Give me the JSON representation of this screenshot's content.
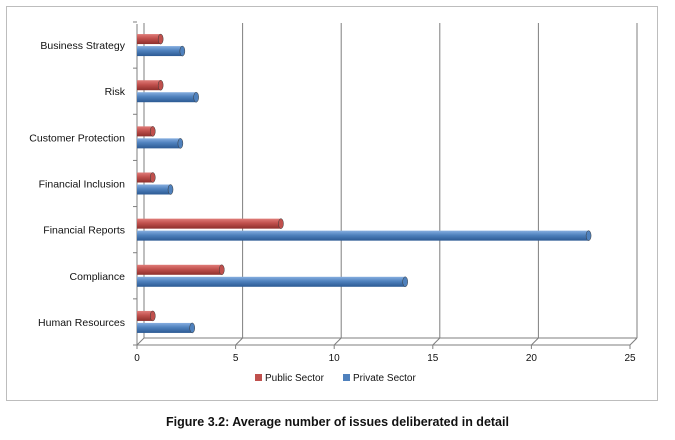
{
  "caption": "Figure 3.2: Average number of issues deliberated in detail",
  "chart_data": {
    "type": "bar",
    "orientation": "horizontal",
    "categories": [
      "Business Strategy",
      "Risk",
      "Customer Protection",
      "Financial Inclusion",
      "Financial Reports",
      "Compliance",
      "Human Resources"
    ],
    "series": [
      {
        "name": "Public Sector",
        "color": "#c0504d",
        "values": [
          1.2,
          1.2,
          0.8,
          0.8,
          7.3,
          4.3,
          0.8
        ]
      },
      {
        "name": "Private Sector",
        "color": "#4f81bd",
        "values": [
          2.3,
          3.0,
          2.2,
          1.7,
          22.9,
          13.6,
          2.8
        ]
      }
    ],
    "xlim": [
      0,
      25
    ],
    "xticks": [
      0,
      5,
      10,
      15,
      20,
      25
    ],
    "grid": "vertical",
    "legend": "bottom"
  }
}
